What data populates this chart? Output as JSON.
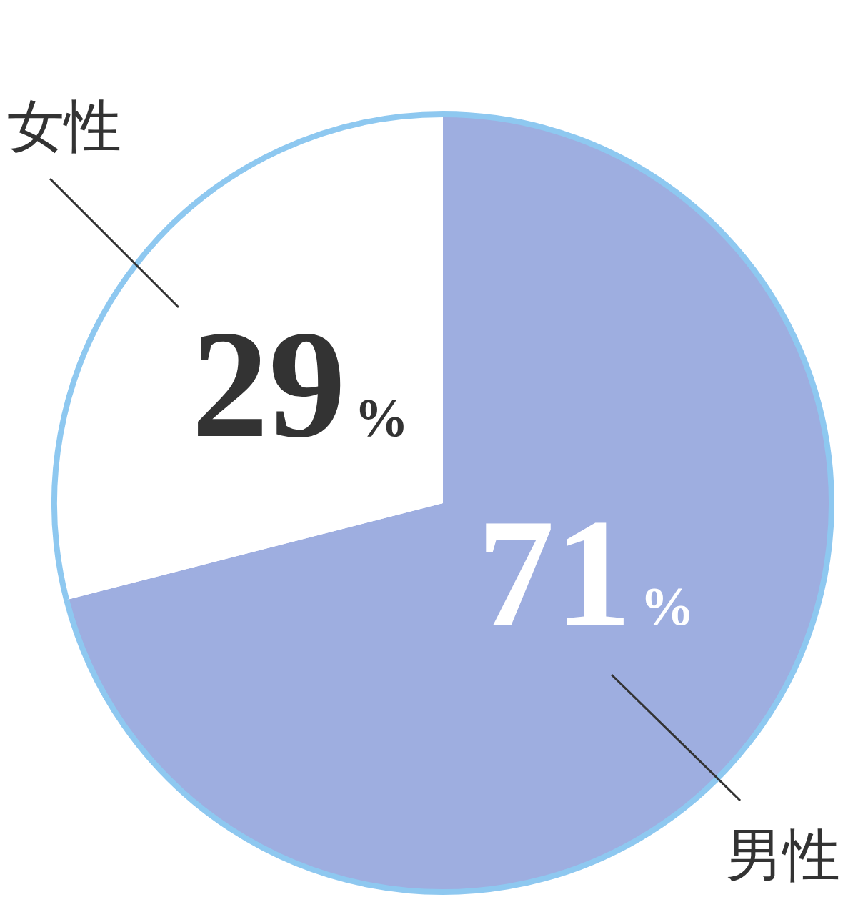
{
  "chart_data": {
    "type": "pie",
    "categories": [
      "男性",
      "女性"
    ],
    "values": [
      71,
      29
    ],
    "colors": [
      "#9eaee0",
      "#ffffff"
    ],
    "value_labels": [
      "71%",
      "29%"
    ]
  }
}
